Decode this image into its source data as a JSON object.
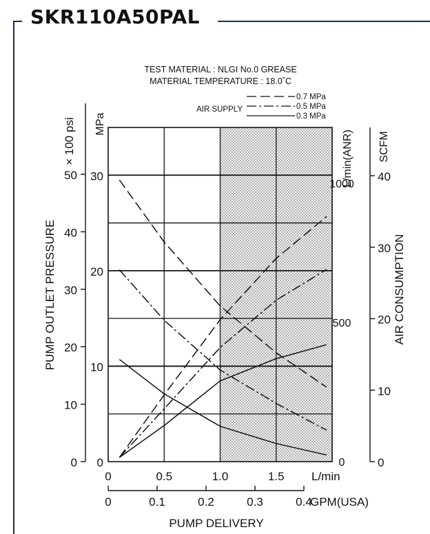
{
  "header": {
    "model": "SKR110A50PAL"
  },
  "chart_data": {
    "type": "line",
    "title_lines": [
      "TEST MATERIAL : NLGI No.0 GREASE",
      "MATERIAL TEMPERATURE : 18.0˚C"
    ],
    "legend": {
      "title": "AIR SUPPLY",
      "entries": [
        {
          "label": "0.7 MPa",
          "style": "dashed"
        },
        {
          "label": "0.5 MPa",
          "style": "dash-dot"
        },
        {
          "label": "0.3 MPa",
          "style": "solid"
        }
      ]
    },
    "x_axes": {
      "lmin": {
        "label": "L/min",
        "ticks": [
          "0",
          "0.5",
          "1.0",
          "1.5"
        ],
        "range": [
          0,
          2.0
        ]
      },
      "gpm": {
        "label": "GPM(USA)",
        "ticks": [
          "0",
          "0.1",
          "0.2",
          "0.3",
          "0.4"
        ]
      },
      "xlabel": "PUMP DELIVERY"
    },
    "y_axes": {
      "psi": {
        "unit": "× 100 psi",
        "ticks": [
          "0",
          "10",
          "20",
          "30",
          "40",
          "50"
        ]
      },
      "mpa": {
        "unit": "MPa",
        "ticks": [
          "0",
          "10",
          "20",
          "30"
        ],
        "range": [
          0,
          35
        ]
      },
      "ylabel": "PUMP OUTLET PRESSURE",
      "anr": {
        "unit": "L/min(ANR)",
        "ticks": [
          "0",
          "500",
          "1000"
        ]
      },
      "scfm": {
        "unit": "SCFM",
        "ticks": [
          "0",
          "10",
          "20",
          "30",
          "40"
        ]
      },
      "y2label": "AIR CONSUMPTION"
    },
    "shaded_region_lmin": [
      1.0,
      2.0
    ],
    "pressure_series": [
      {
        "name": "0.7 MPa",
        "style": "dashed",
        "x": [
          0.1,
          0.5,
          1.0,
          1.5,
          1.95
        ],
        "y": [
          29.5,
          23.0,
          16.3,
          11.4,
          7.8
        ]
      },
      {
        "name": "0.5 MPa",
        "style": "dash-dot",
        "x": [
          0.1,
          0.5,
          1.0,
          1.5,
          1.95
        ],
        "y": [
          20.1,
          14.8,
          9.6,
          6.1,
          3.3
        ]
      },
      {
        "name": "0.3 MPa",
        "style": "solid",
        "x": [
          0.1,
          0.5,
          1.0,
          1.5,
          1.95
        ],
        "y": [
          10.7,
          7.1,
          3.7,
          1.9,
          0.7
        ]
      }
    ],
    "air_series_anr": [
      {
        "name": "0.7 MPa",
        "style": "dashed",
        "x": [
          0.1,
          0.5,
          1.0,
          1.5,
          1.95
        ],
        "y": [
          15,
          240,
          510,
          730,
          880
        ]
      },
      {
        "name": "0.5 MPa",
        "style": "dash-dot",
        "x": [
          0.1,
          0.5,
          1.0,
          1.5,
          1.95
        ],
        "y": [
          15,
          190,
          410,
          580,
          690
        ]
      },
      {
        "name": "0.3 MPa",
        "style": "solid",
        "x": [
          0.1,
          0.5,
          1.0,
          1.5,
          1.95
        ],
        "y": [
          15,
          130,
          290,
          370,
          420
        ]
      }
    ]
  }
}
